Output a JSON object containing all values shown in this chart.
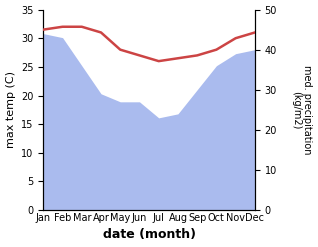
{
  "months": [
    "Jan",
    "Feb",
    "Mar",
    "Apr",
    "May",
    "Jun",
    "Jul",
    "Aug",
    "Sep",
    "Oct",
    "Nov",
    "Dec"
  ],
  "month_indices": [
    0,
    1,
    2,
    3,
    4,
    5,
    6,
    7,
    8,
    9,
    10,
    11
  ],
  "temperature": [
    31.5,
    32.0,
    32.0,
    31.0,
    28.0,
    27.0,
    26.0,
    26.5,
    27.0,
    28.0,
    30.0,
    31.0
  ],
  "precipitation": [
    44.0,
    43.0,
    36.0,
    29.0,
    27.0,
    27.0,
    23.0,
    24.0,
    30.0,
    36.0,
    39.0,
    40.0
  ],
  "temp_color": "#cc4444",
  "precip_color": "#aabbee",
  "ylabel_left": "max temp (C)",
  "ylabel_right": "med. precipitation\n(kg/m2)",
  "xlabel": "date (month)",
  "ylim_left": [
    0,
    35
  ],
  "ylim_right": [
    0,
    50
  ],
  "yticks_left": [
    0,
    5,
    10,
    15,
    20,
    25,
    30,
    35
  ],
  "yticks_right": [
    0,
    10,
    20,
    30,
    40,
    50
  ],
  "temp_linewidth": 1.8,
  "background_color": "#ffffff"
}
